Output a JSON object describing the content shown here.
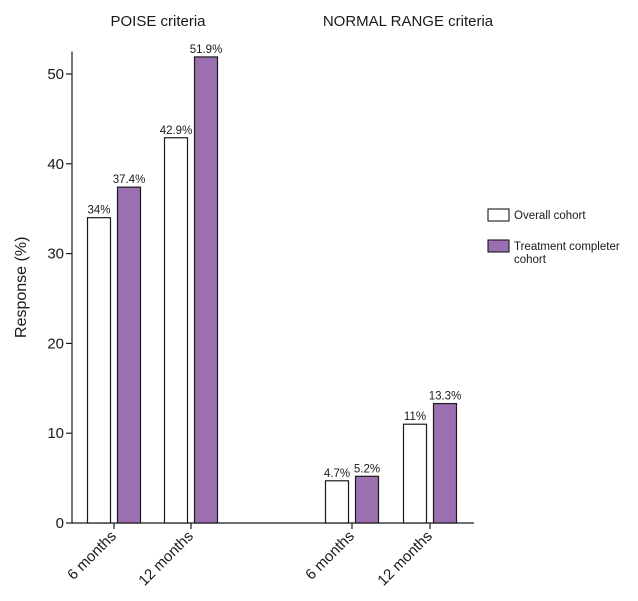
{
  "chart_data": {
    "type": "bar",
    "ylabel": "Response (%)",
    "ylim": [
      0,
      52.5
    ],
    "yticks": [
      "0",
      "10",
      "20",
      "30",
      "40",
      "50"
    ],
    "groups": [
      {
        "title": "POISE criteria",
        "categories": [
          "6 months",
          "12 months"
        ],
        "values": {
          "overall": [
            34,
            42.9
          ],
          "completer": [
            37.4,
            51.9
          ]
        },
        "labels": {
          "overall": [
            "34%",
            "42.9%"
          ],
          "completer": [
            "37.4%",
            "51.9%"
          ]
        }
      },
      {
        "title": "NORMAL RANGE criteria",
        "categories": [
          "6 months",
          "12 months"
        ],
        "values": {
          "overall": [
            4.7,
            11
          ],
          "completer": [
            5.2,
            13.3
          ]
        },
        "labels": {
          "overall": [
            "4.7%",
            "11%"
          ],
          "completer": [
            "5.2%",
            "13.3%"
          ]
        }
      }
    ],
    "series": [
      {
        "key": "overall",
        "name": "Overall cohort",
        "color": "#ffffff",
        "edge": "#1a1a1a"
      },
      {
        "key": "completer",
        "name": "Treatment completer cohort",
        "color": "#9b6fb0",
        "edge": "#1a1a1a"
      }
    ],
    "legend": {
      "placement": "right",
      "entries": [
        {
          "lines": [
            "Overall cohort"
          ],
          "color": "#ffffff"
        },
        {
          "lines": [
            "Treatment completer",
            "cohort"
          ],
          "color": "#9b6fb0"
        }
      ]
    }
  }
}
